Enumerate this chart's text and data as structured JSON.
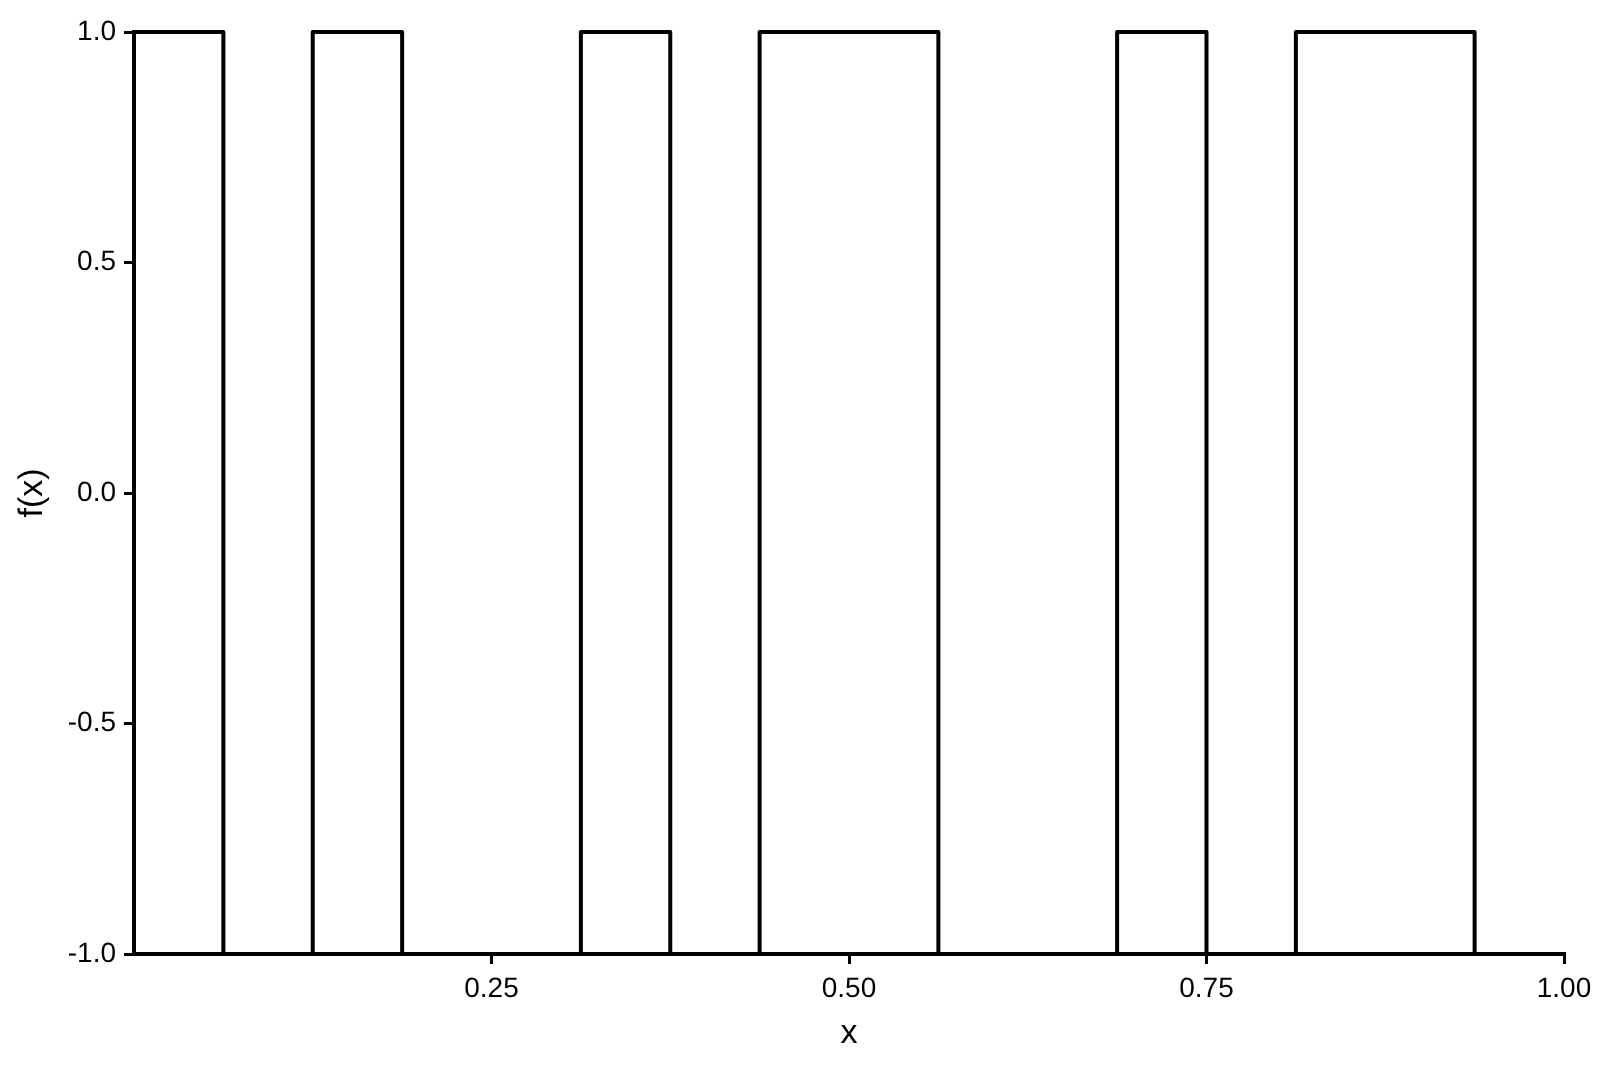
{
  "chart_data": {
    "type": "step",
    "xlabel": "x",
    "ylabel": "f(x)",
    "x": [
      0,
      0.0625,
      0.125,
      0.1875,
      0.3125,
      0.375,
      0.4375,
      0.5625,
      0.6875,
      0.75,
      0.8125,
      0.9375,
      1
    ],
    "series": [
      {
        "color": "#000000",
        "values": [
          1,
          -1,
          1,
          -1,
          1,
          -1,
          1,
          -1,
          1,
          -1,
          1,
          -1,
          -1
        ]
      }
    ],
    "xlim": [
      0,
      1
    ],
    "xticks": [
      {
        "value": 0.25,
        "label": "0.25"
      },
      {
        "value": 0.5,
        "label": "0.50"
      },
      {
        "value": 0.75,
        "label": "0.75"
      },
      {
        "value": 1,
        "label": "1.00"
      }
    ],
    "ylim": [
      -1,
      1
    ],
    "yticks": [
      {
        "value": -1,
        "label": "-1.0"
      },
      -0.5,
      {
        "value": 0,
        "label": "0.0"
      },
      0.5,
      {
        "value": 1,
        "label": "1.0"
      }
    ],
    "legend": false
  }
}
